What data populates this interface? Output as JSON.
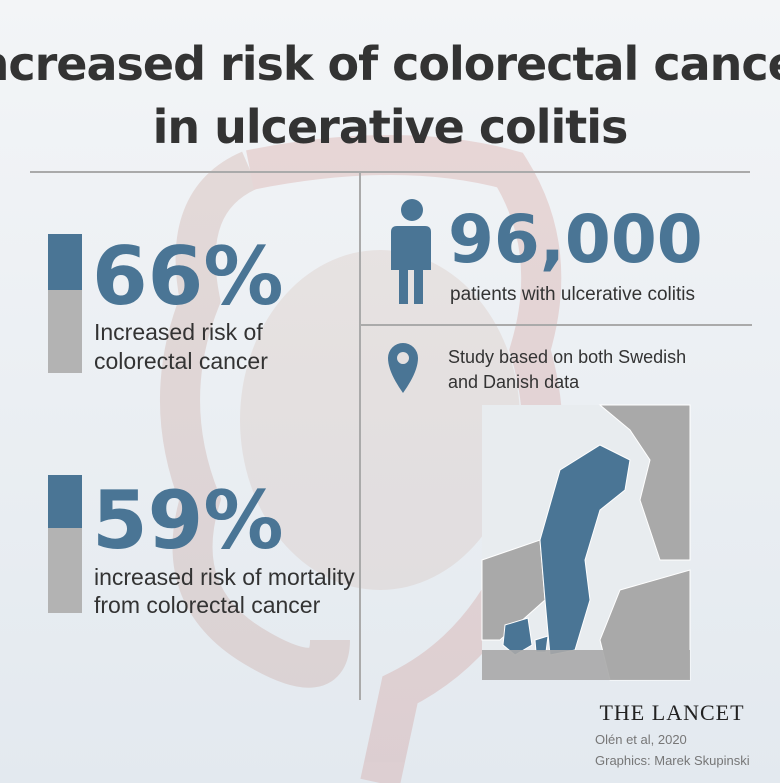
{
  "header": {
    "title_lines": [
      "Increased risk of colorectal cancer",
      "in ulcerative colitis"
    ]
  },
  "stats": [
    {
      "value": "66%",
      "description": [
        "Increased risk of",
        "colorectal cancer"
      ]
    },
    {
      "value": "59%",
      "description": [
        "increased risk of mortality",
        "from colorectal cancer"
      ]
    }
  ],
  "patients": {
    "value": "96,000",
    "description": "patients with ulcerative colitis"
  },
  "study": {
    "description": [
      "Study based on both Swedish",
      "and Danish data"
    ]
  },
  "footer": {
    "journal": "THE LANCET",
    "citation": "Olén et al, 2020",
    "credit": "Graphics: Marek Skupinski"
  }
}
